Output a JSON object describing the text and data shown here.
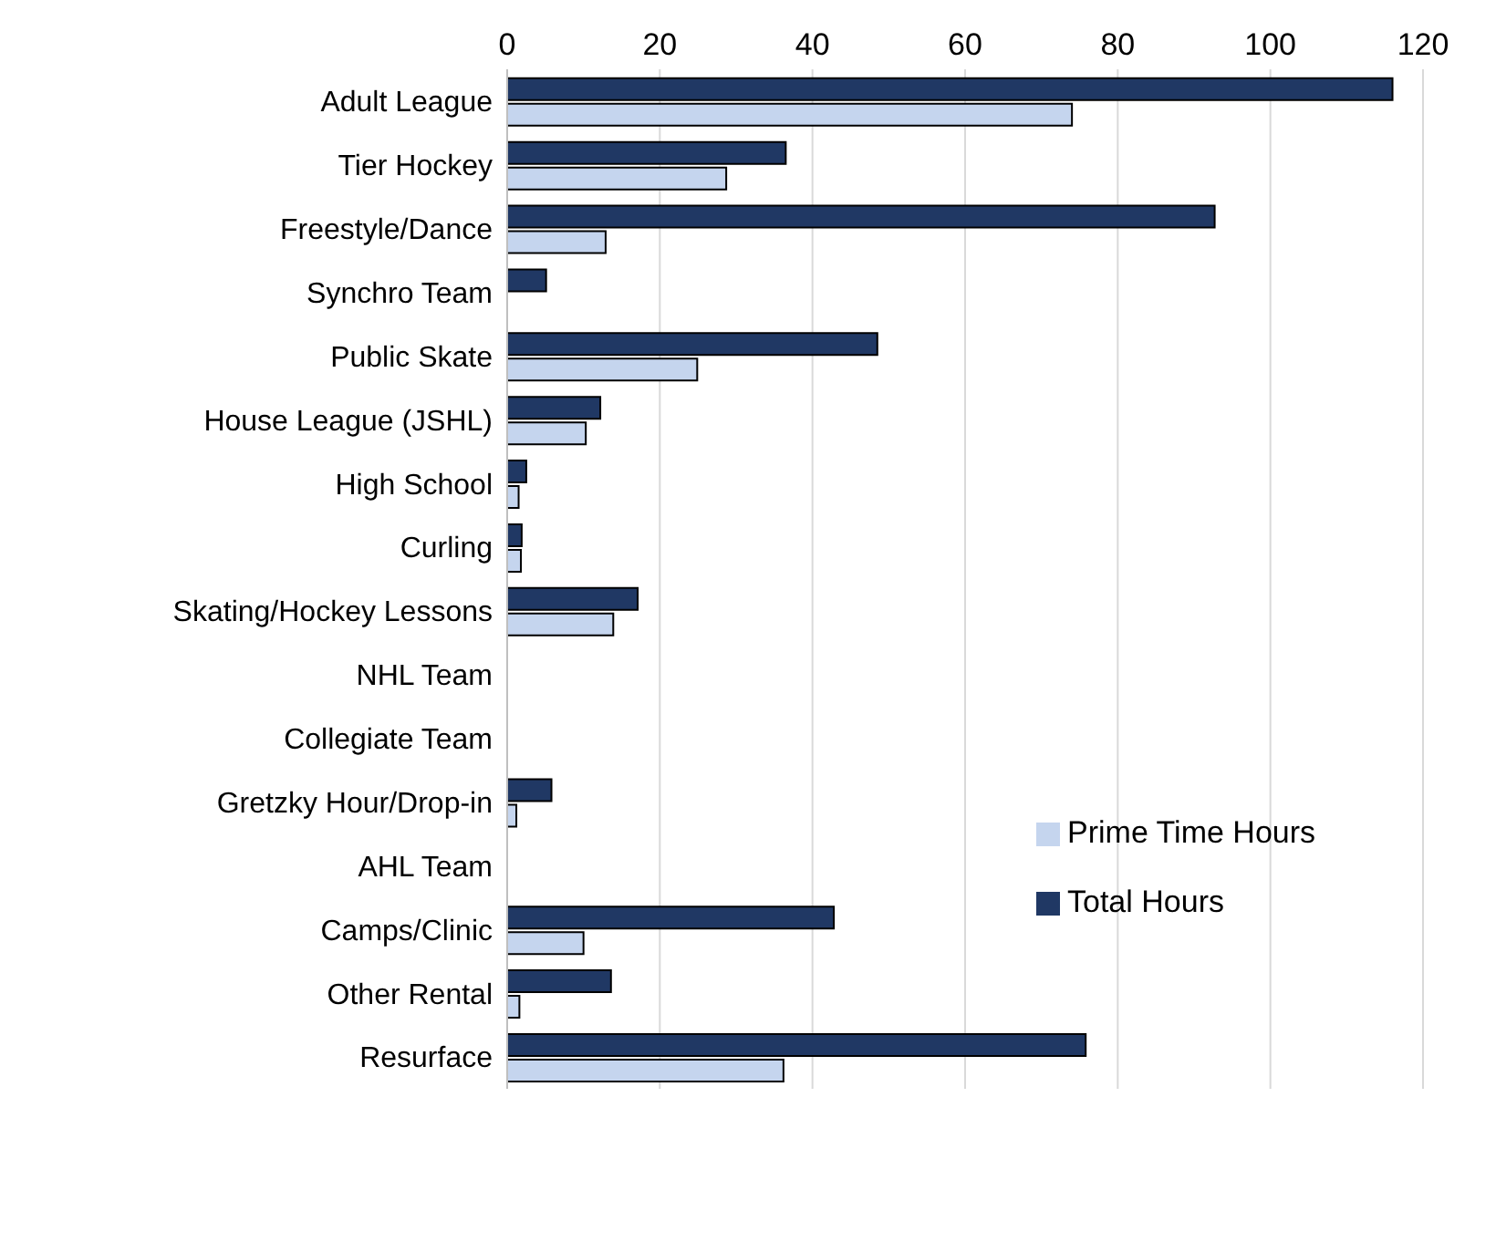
{
  "chart_data": {
    "type": "bar",
    "orientation": "horizontal",
    "categories": [
      "Adult League",
      "Tier Hockey",
      "Freestyle/Dance",
      "Synchro Team",
      "Public Skate",
      "House League (JSHL)",
      "High School",
      "Curling",
      "Skating/Hockey Lessons",
      "NHL Team",
      "Collegiate Team",
      "Gretzky Hour/Drop-in",
      "AHL Team",
      "Camps/Clinic",
      "Other Rental",
      "Resurface"
    ],
    "series": [
      {
        "name": "Total Hours",
        "color": "#203864",
        "values": [
          116,
          36.5,
          92.7,
          5.1,
          48.5,
          12.2,
          2.5,
          1.9,
          17.1,
          0,
          0,
          5.8,
          0,
          42.8,
          13.6,
          75.8
        ]
      },
      {
        "name": "Prime Time Hours",
        "color": "#c5d5ee",
        "values": [
          74,
          28.7,
          12.9,
          0,
          24.9,
          10.3,
          1.5,
          1.8,
          13.9,
          0,
          0,
          1.2,
          0,
          10,
          1.6,
          36.2
        ]
      }
    ],
    "xlim": [
      0,
      120
    ],
    "xticks": [
      0,
      20,
      40,
      60,
      80,
      100,
      120
    ],
    "grid": "x",
    "legend": "right"
  }
}
